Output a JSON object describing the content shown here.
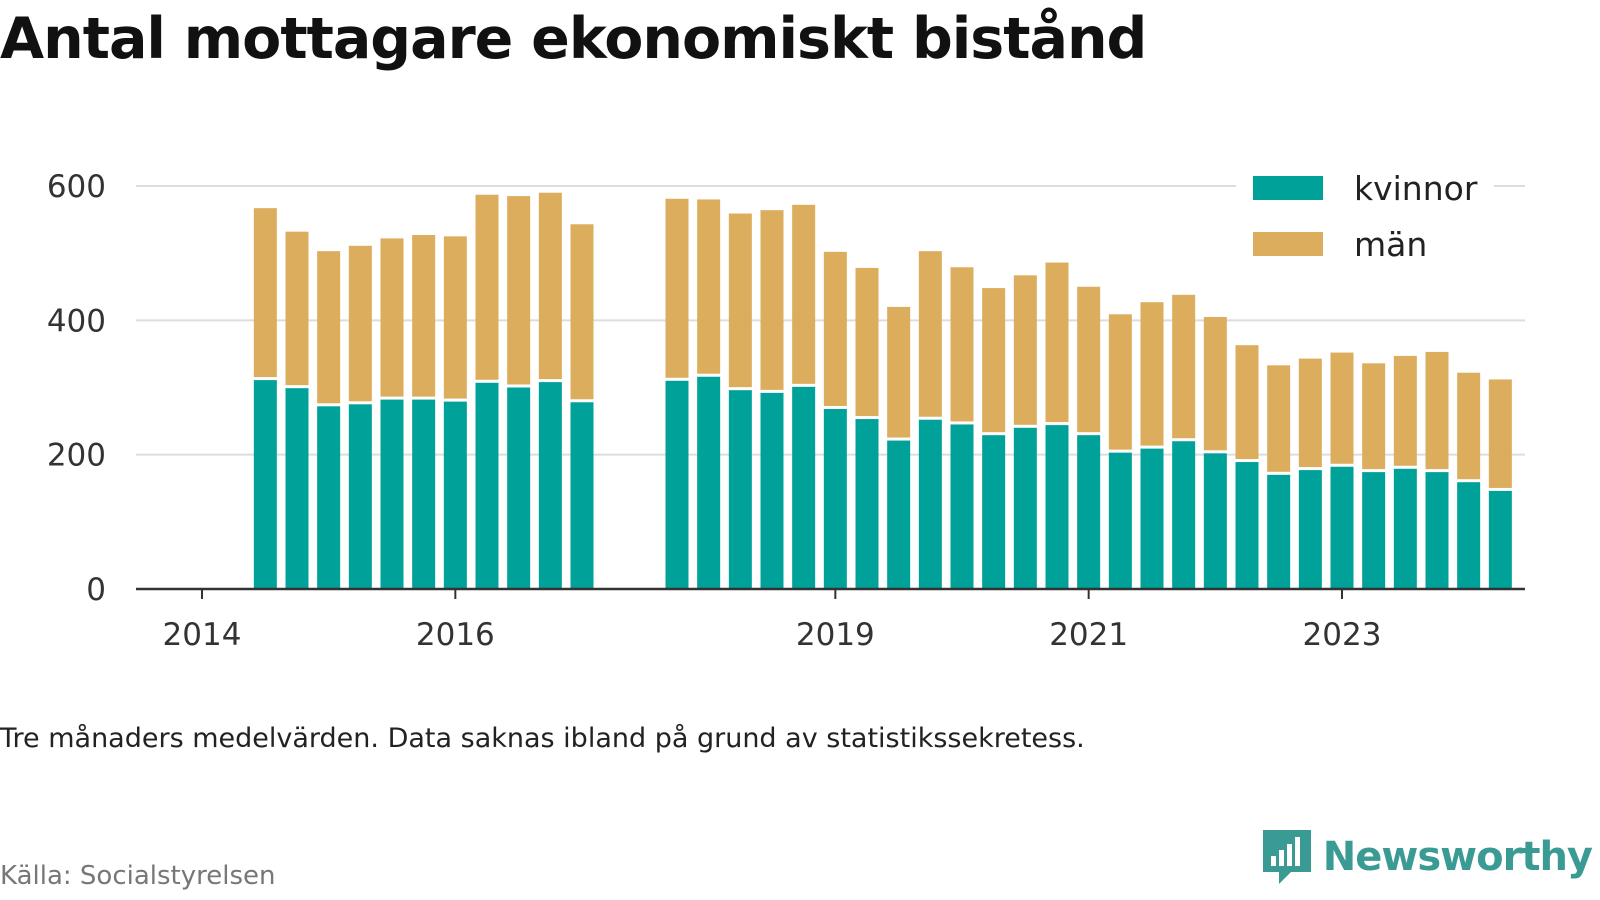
{
  "title": "Antal mottagare ekonomiskt bistånd",
  "note": "Tre månaders medelvärden. Data saknas ibland på grund av statistikssekretess.",
  "source": "Källa: Socialstyrelsen",
  "brand": "Newsworthy",
  "colors": {
    "kvinnor": "#00a198",
    "man": "#dbad5c",
    "grid": "#dddddd",
    "axis": "#333333"
  },
  "chart_data": {
    "type": "bar",
    "stacked": true,
    "x_type": "date",
    "title": "Antal mottagare ekonomiskt bistånd",
    "xlabel": "",
    "ylabel": "",
    "ylim": [
      0,
      600
    ],
    "yticks": [
      0,
      200,
      400,
      600
    ],
    "xticks": [
      {
        "date": "2014-01",
        "label": "2014"
      },
      {
        "date": "2016-01",
        "label": "2016"
      },
      {
        "date": "2019-01",
        "label": "2019"
      },
      {
        "date": "2021-01",
        "label": "2021"
      },
      {
        "date": "2023-01",
        "label": "2023"
      }
    ],
    "grid": true,
    "legend_position": "top-right",
    "categories": [
      "2014-07",
      "2014-10",
      "2015-01",
      "2015-04",
      "2015-07",
      "2015-10",
      "2016-01",
      "2016-04",
      "2016-07",
      "2016-10",
      "2017-01",
      "2017-10",
      "2018-01",
      "2018-04",
      "2018-07",
      "2018-10",
      "2019-01",
      "2019-04",
      "2019-07",
      "2019-10",
      "2020-01",
      "2020-04",
      "2020-07",
      "2020-10",
      "2021-01",
      "2021-04",
      "2021-07",
      "2021-10",
      "2022-01",
      "2022-04",
      "2022-07",
      "2022-10",
      "2023-01",
      "2023-04",
      "2023-07",
      "2023-10",
      "2024-01",
      "2024-04"
    ],
    "series": [
      {
        "name": "kvinnor",
        "values": [
          311,
          299,
          272,
          275,
          282,
          282,
          279,
          307,
          300,
          308,
          278,
          310,
          316,
          296,
          292,
          301,
          268,
          253,
          221,
          252,
          245,
          229,
          240,
          244,
          229,
          203,
          209,
          220,
          202,
          189,
          170,
          177,
          182,
          174,
          179,
          174,
          159,
          146
        ]
      },
      {
        "name": "män",
        "values": [
          256,
          233,
          231,
          236,
          240,
          245,
          246,
          280,
          285,
          282,
          265,
          271,
          264,
          263,
          272,
          271,
          234,
          225,
          199,
          251,
          234,
          219,
          227,
          242,
          221,
          206,
          218,
          218,
          203,
          174,
          163,
          166,
          170,
          162,
          168,
          179,
          163,
          166
        ]
      }
    ]
  }
}
